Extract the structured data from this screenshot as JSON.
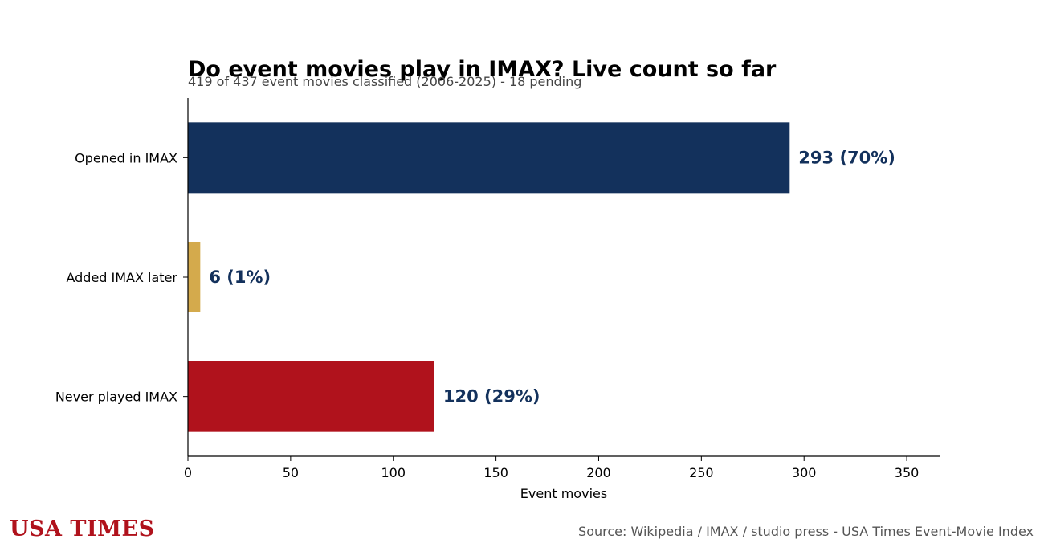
{
  "chart_data": {
    "type": "bar",
    "orientation": "horizontal",
    "title": "Do event movies play in IMAX? Live count so far",
    "subtitle": "419 of 437 event movies classified (2006-2025) - 18 pending",
    "categories": [
      "Opened in IMAX",
      "Added IMAX later",
      "Never played IMAX"
    ],
    "values": [
      293,
      6,
      120
    ],
    "value_labels": [
      "293  (70%)",
      "6  (1%)",
      "120  (29%)"
    ],
    "bar_colors": [
      "#13315c",
      "#d4aa4c",
      "#b0121c"
    ],
    "label_color": "#13315c",
    "xlabel": "Event movies",
    "ylabel": "",
    "xlim": [
      0,
      366
    ],
    "xticks": [
      0,
      50,
      100,
      150,
      200,
      250,
      300,
      350
    ],
    "grid": false,
    "legend": "none"
  },
  "footer": {
    "brand": "USA TIMES",
    "source": "Source: Wikipedia / IMAX / studio press - USA Times Event-Movie Index"
  },
  "colors": {
    "brand": "#b0121c",
    "axis": "#000000"
  }
}
